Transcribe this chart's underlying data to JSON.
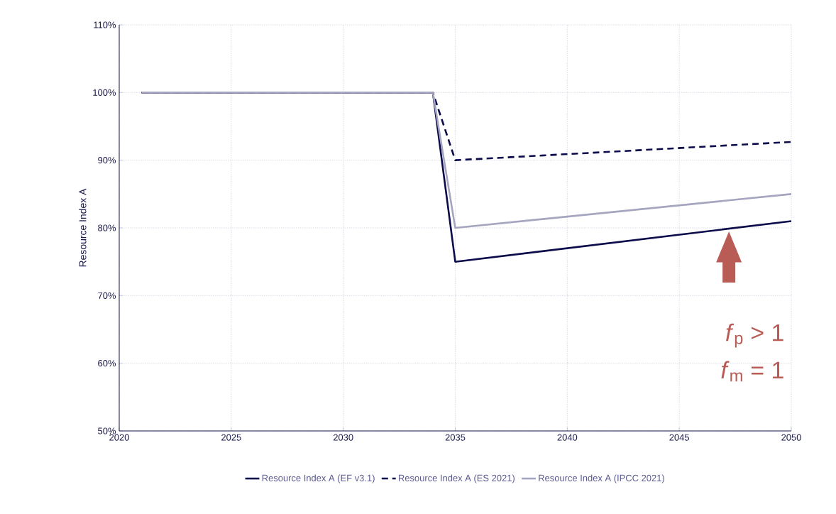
{
  "chart_data": {
    "type": "line",
    "ylabel": "Resource Index A",
    "x": [
      2021,
      2034,
      2035,
      2050
    ],
    "series": [
      {
        "name": "Resource Index A (EF v3.1)",
        "color": "#0b0a4a",
        "line_style": "solid",
        "values": [
          100,
          100,
          75,
          81
        ]
      },
      {
        "name": "Resource Index A (ES 2021)",
        "color": "#0b0a4a",
        "line_style": "dashed",
        "values": [
          100,
          100,
          90,
          92.7
        ]
      },
      {
        "name": "Resource Index A (IPCC 2021)",
        "color": "#a6a5c0",
        "line_style": "solid",
        "values": [
          100,
          100,
          80,
          85
        ]
      }
    ],
    "xlim": [
      2020,
      2050
    ],
    "xticks": [
      2020,
      2025,
      2030,
      2035,
      2040,
      2045,
      2050
    ],
    "ylim": [
      50,
      110
    ],
    "yticks": [
      {
        "value": 50,
        "label": "50%"
      },
      {
        "value": 60,
        "label": "60%"
      },
      {
        "value": 70,
        "label": "70%"
      },
      {
        "value": 80,
        "label": "80%"
      },
      {
        "value": 90,
        "label": "90%"
      },
      {
        "value": 100,
        "label": "100%"
      },
      {
        "value": 110,
        "label": "110%"
      }
    ],
    "annotations": [
      "*f*$_{p}$ > 1",
      "*f*$_{m}$ = 1"
    ],
    "grid": true,
    "legend": "bottom",
    "marker": "none"
  }
}
